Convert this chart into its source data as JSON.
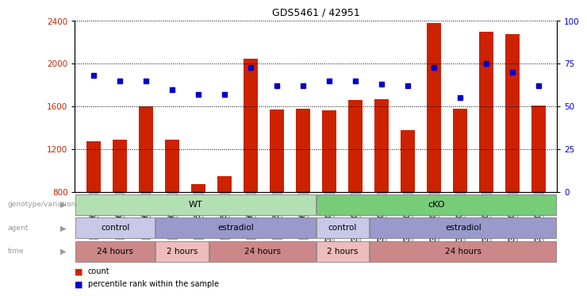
{
  "title": "GDS5461 / 42951",
  "samples": [
    "GSM568946",
    "GSM568947",
    "GSM568948",
    "GSM568949",
    "GSM568950",
    "GSM568951",
    "GSM568952",
    "GSM568953",
    "GSM568954",
    "GSM1301143",
    "GSM1301144",
    "GSM1301145",
    "GSM1301146",
    "GSM1301147",
    "GSM1301148",
    "GSM1301149",
    "GSM1301150",
    "GSM1301151"
  ],
  "counts": [
    1270,
    1290,
    1600,
    1290,
    870,
    950,
    2050,
    1570,
    1580,
    1560,
    1660,
    1670,
    1380,
    2380,
    1580,
    2300,
    2280,
    1610
  ],
  "percentile_ranks": [
    68,
    65,
    65,
    60,
    57,
    57,
    73,
    62,
    62,
    65,
    65,
    63,
    62,
    73,
    55,
    75,
    70,
    62
  ],
  "ylim_left": [
    800,
    2400
  ],
  "ylim_right": [
    0,
    100
  ],
  "yticks_left": [
    800,
    1200,
    1600,
    2000,
    2400
  ],
  "yticks_right": [
    0,
    25,
    50,
    75,
    100
  ],
  "bar_color": "#cc2200",
  "dot_color": "#0000cc",
  "bar_width": 0.55,
  "genotype_variation": [
    {
      "start": 0,
      "end": 9,
      "color": "#b3e0b3",
      "label": "WT"
    },
    {
      "start": 9,
      "end": 18,
      "color": "#77cc77",
      "label": "cKO"
    }
  ],
  "agent": [
    {
      "label": "control",
      "start": 0,
      "end": 3,
      "color": "#c8c8e8"
    },
    {
      "label": "estradiol",
      "start": 3,
      "end": 9,
      "color": "#9999cc"
    },
    {
      "label": "control",
      "start": 9,
      "end": 11,
      "color": "#c8c8e8"
    },
    {
      "label": "estradiol",
      "start": 11,
      "end": 18,
      "color": "#9999cc"
    }
  ],
  "time": [
    {
      "label": "24 hours",
      "start": 0,
      "end": 3,
      "color": "#cc8888"
    },
    {
      "label": "2 hours",
      "start": 3,
      "end": 5,
      "color": "#eebcbc"
    },
    {
      "label": "24 hours",
      "start": 5,
      "end": 9,
      "color": "#cc8888"
    },
    {
      "label": "2 hours",
      "start": 9,
      "end": 11,
      "color": "#eebcbc"
    },
    {
      "label": "24 hours",
      "start": 11,
      "end": 18,
      "color": "#cc8888"
    }
  ],
  "legend_count_color": "#cc2200",
  "legend_dot_color": "#0000cc",
  "row_label_color": "#999999",
  "xticklabel_bg": "#dddddd"
}
